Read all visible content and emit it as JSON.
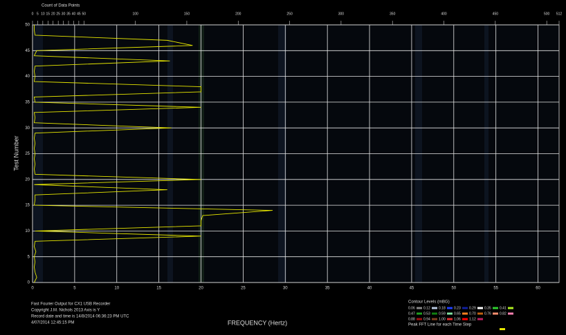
{
  "chart_data": {
    "type": "line",
    "title": "Fast Fourier Output for CX1 USB Recorder",
    "notes": [
      "Copyright J.M. Nichols 2013 Axis is Y",
      "Record date and time is 14/8/2014 06:36:23 PM UTC",
      "4/07/2014 12:45:15 PM"
    ],
    "xlabel": "FREQUENCY (Hertz)",
    "ylabel": "Test Number",
    "x2label": "Count of Data Points",
    "xlim": [
      0,
      62.5
    ],
    "xticks": [
      0,
      5,
      10,
      15,
      20,
      25,
      30,
      35,
      40,
      45,
      50,
      55,
      60
    ],
    "x2lim": [
      0,
      512
    ],
    "x2ticks": [
      0,
      5,
      10,
      15,
      20,
      25,
      30,
      35,
      40,
      45,
      50,
      100,
      150,
      200,
      250,
      300,
      350,
      400,
      450,
      500,
      512
    ],
    "ylim": [
      0,
      50
    ],
    "yticks": [
      0,
      5,
      10,
      15,
      20,
      25,
      30,
      35,
      40,
      45,
      50
    ],
    "grid": true,
    "legend_title": "Contour Levels (mBG)",
    "contour_levels": [
      {
        "name": "0.06",
        "color": "#8a8a8a"
      },
      {
        "name": "0.12",
        "color": "#b8c8e0"
      },
      {
        "name": "0.18",
        "color": "#2040ff"
      },
      {
        "name": "0.23",
        "color": "#1020a0"
      },
      {
        "name": "0.29",
        "color": "#ffffff"
      },
      {
        "name": "0.35",
        "color": "#30d030"
      },
      {
        "name": "0.41",
        "color": "#b0f020"
      },
      {
        "name": "0.47",
        "color": "#20a020"
      },
      {
        "name": "0.53",
        "color": "#108010"
      },
      {
        "name": "0.59",
        "color": "#80e0a0"
      },
      {
        "name": "0.65",
        "color": "#ff8020"
      },
      {
        "name": "0.70",
        "color": "#c06010"
      },
      {
        "name": "0.76",
        "color": "#ff9070"
      },
      {
        "name": "0.82",
        "color": "#ff80b0"
      },
      {
        "name": "0.88",
        "color": "#a01010"
      },
      {
        "name": "0.94",
        "color": "#804020"
      },
      {
        "name": "1.00",
        "color": "#e03030"
      },
      {
        "name": "1.06",
        "color": "#ff0000"
      },
      {
        "name": "1.12",
        "color": "#c02060"
      }
    ],
    "series": [
      {
        "name": "Peak FFT Line for each Time Step",
        "color": "#e8e800",
        "x": [
          0.2,
          0.5,
          0.3,
          0.2,
          0.3,
          0.2,
          0.4,
          0.2,
          0.3,
          20.0,
          0.3,
          20.0,
          20.0,
          20.2,
          28.5,
          0.2,
          0.3,
          0.3,
          16.0,
          0.2,
          20.0,
          0.3,
          0.2,
          0.3,
          0.2,
          0.3,
          0.2,
          0.3,
          0.2,
          0.3,
          16.5,
          0.2,
          0.3,
          0.2,
          20.0,
          0.3,
          0.2,
          20.0,
          20.0,
          0.2,
          0.3,
          0.2,
          0.3,
          16.3,
          0.2,
          0.5,
          19.0,
          16.0,
          0.3,
          0.2,
          0.2
        ],
        "y": [
          0,
          1,
          2,
          3,
          4,
          5,
          6,
          7,
          8,
          9,
          10,
          11,
          12,
          13,
          14,
          15,
          16,
          17,
          18,
          19,
          20,
          21,
          22,
          23,
          24,
          25,
          26,
          27,
          28,
          29,
          30,
          31,
          32,
          33,
          34,
          35,
          36,
          37,
          38,
          39,
          40,
          41,
          42,
          43,
          44,
          45,
          46,
          47,
          48,
          49,
          50
        ]
      }
    ]
  }
}
